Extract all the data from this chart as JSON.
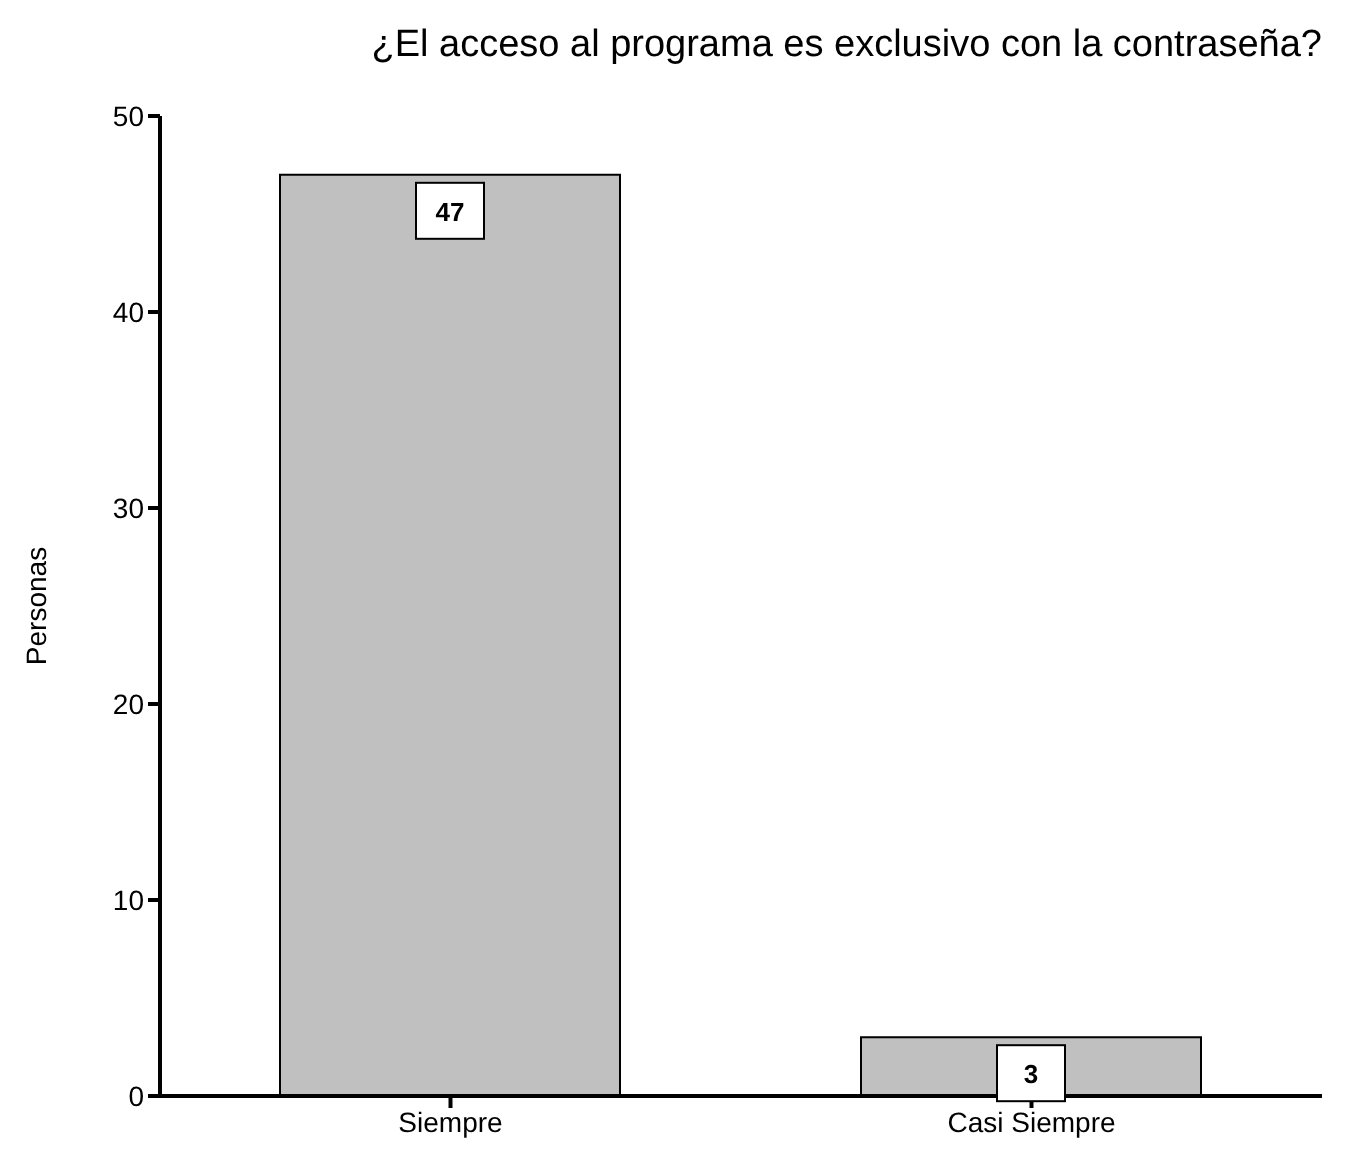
{
  "chart_data": {
    "type": "bar",
    "title": "¿El acceso al programa es exclusivo con la contraseña?",
    "ylabel": "Personas",
    "categories": [
      "Siempre",
      "Casi Siempre"
    ],
    "values": [
      47,
      3
    ],
    "color": "#c0c0c0",
    "ylim": [
      0,
      50
    ],
    "yticks": [
      0,
      10,
      20,
      30,
      40,
      50
    ],
    "grid": false,
    "legend": false,
    "data_labels": true
  }
}
